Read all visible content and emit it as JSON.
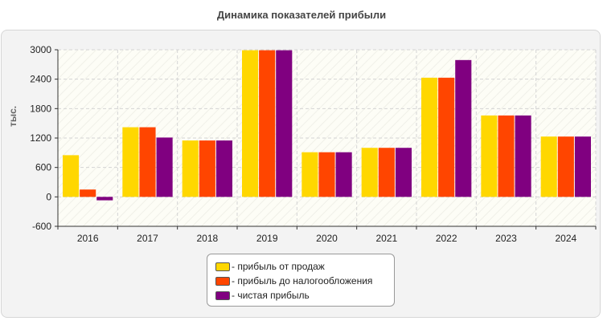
{
  "chart_data": {
    "type": "bar",
    "title": "Динамика показателей прибыли",
    "xlabel": "",
    "ylabel": "тыс.",
    "categories": [
      "2016",
      "2017",
      "2018",
      "2019",
      "2020",
      "2021",
      "2022",
      "2023",
      "2024"
    ],
    "series": [
      {
        "name": "- прибыль от продаж",
        "color": "#ffd700",
        "values": [
          850,
          1420,
          1150,
          2990,
          910,
          1000,
          2430,
          1660,
          1230
        ]
      },
      {
        "name": "- прибыль до налогообложения",
        "color": "#ff4500",
        "values": [
          150,
          1420,
          1150,
          2990,
          910,
          1000,
          2430,
          1660,
          1230
        ]
      },
      {
        "name": "- чистая прибыль",
        "color": "#800080",
        "values": [
          -70,
          1210,
          1150,
          2990,
          910,
          1000,
          2790,
          1660,
          1230
        ]
      }
    ],
    "yticks": [
      3000,
      2400,
      1800,
      1200,
      600,
      0,
      -600
    ],
    "ylim": [
      -600,
      3000
    ],
    "grid": true,
    "legend_position": "bottom-center"
  }
}
